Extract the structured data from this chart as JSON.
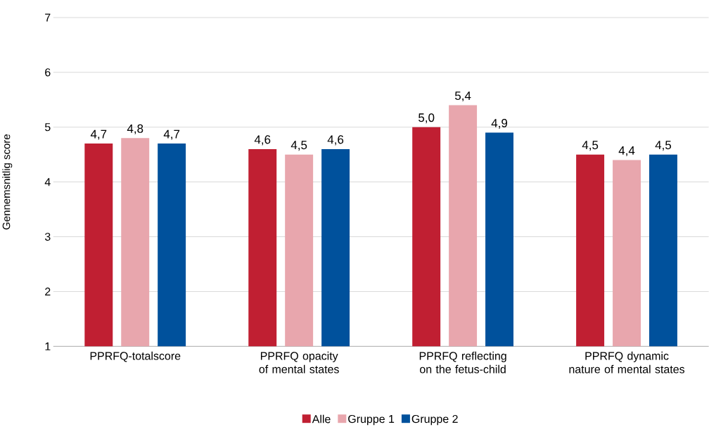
{
  "chart_data": {
    "type": "bar",
    "ylabel": "Gennemsnitlig score",
    "categories": [
      "PPRFQ-totalscore",
      "PPRFQ opacity of mental states",
      "PPRFQ reflecting on the fetus-child",
      "PPRFQ dynamic nature of mental states"
    ],
    "series": [
      {
        "name": "Alle",
        "color": "#c01f32",
        "values": [
          4.7,
          4.6,
          5.0,
          4.5
        ],
        "value_labels": [
          "4,7",
          "4,6",
          "5,0",
          "4,5"
        ]
      },
      {
        "name": "Gruppe 1",
        "color": "#e8a6ad",
        "values": [
          4.8,
          4.5,
          5.4,
          4.4
        ],
        "value_labels": [
          "4,8",
          "4,5",
          "5,4",
          "4,4"
        ]
      },
      {
        "name": "Gruppe 2",
        "color": "#00519c",
        "values": [
          4.7,
          4.6,
          4.9,
          4.5
        ],
        "value_labels": [
          "4,7",
          "4,6",
          "4,9",
          "4,5"
        ]
      }
    ],
    "ylim": [
      1,
      7
    ],
    "yticks": [
      1,
      2,
      3,
      4,
      5,
      6,
      7
    ],
    "grid": "y",
    "legend": "bottom"
  }
}
